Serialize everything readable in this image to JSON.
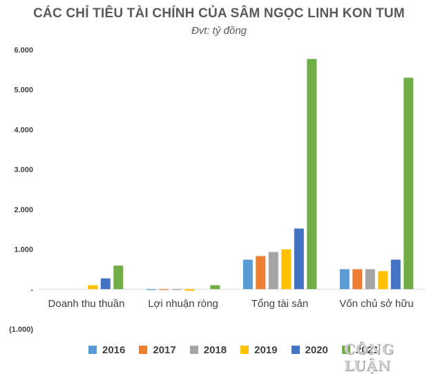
{
  "chart_data": {
    "type": "bar",
    "title": "CÁC CHỈ TIÊU TÀI CHÍNH CỦA SÂM NGỌC LINH KON TUM",
    "subtitle": "Đvt: tỷ đồng",
    "categories": [
      "Doanh thu thuần",
      "Lợi nhuận ròng",
      "Tổng tài sản",
      "Vốn chủ sở hữu"
    ],
    "y_ticks": [
      6000,
      5000,
      4000,
      3000,
      2000,
      1000,
      0,
      -1000
    ],
    "y_tick_labels": [
      "6.000",
      "5.000",
      "4.000",
      "3.000",
      "2.000",
      "1.000",
      "-",
      "(1.000)"
    ],
    "ylim": [
      -1000,
      6000
    ],
    "grid": false,
    "legend_position": "bottom",
    "series": [
      {
        "name": "2016",
        "color": "#5B9BD5",
        "values": [
          0,
          -20,
          740,
          500
        ]
      },
      {
        "name": "2017",
        "color": "#ED7D31",
        "values": [
          0,
          -20,
          830,
          500
        ]
      },
      {
        "name": "2018",
        "color": "#A5A5A5",
        "values": [
          0,
          -20,
          930,
          500
        ]
      },
      {
        "name": "2019",
        "color": "#FFC000",
        "values": [
          100,
          -40,
          1000,
          450
        ]
      },
      {
        "name": "2020",
        "color": "#4472C4",
        "values": [
          270,
          0,
          1520,
          740
        ]
      },
      {
        "name": "2021",
        "color": "#70AD47",
        "values": [
          590,
          100,
          5770,
          5300
        ]
      }
    ]
  },
  "watermark": "CÔNG LUẬN"
}
